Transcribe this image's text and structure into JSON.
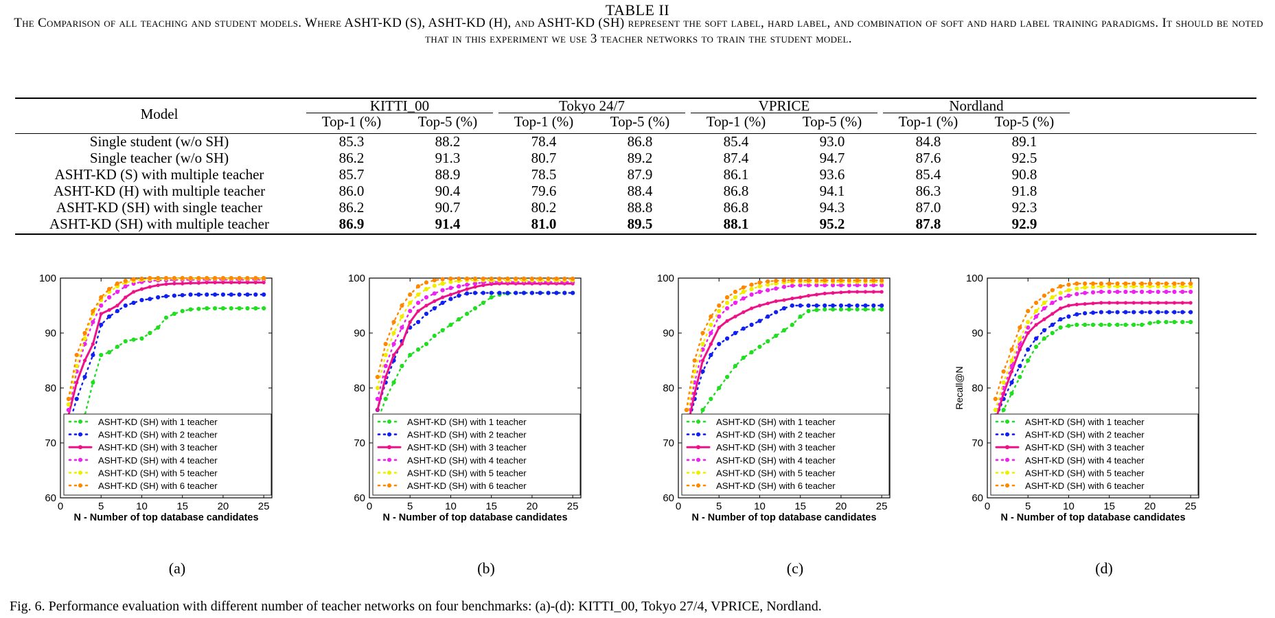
{
  "table": {
    "label": "TABLE II",
    "caption": "The Comparison of all teaching and student models. Where ASHT-KD (S), ASHT-KD (H), and ASHT-KD (SH) represent the soft label, hard label, and combination of soft and hard label training paradigms. It should be noted that in this experiment we use 3 teacher networks to train the student model.",
    "model_header": "Model",
    "datasets": [
      "KITTI_00",
      "Tokyo 24/7",
      "VPRICE",
      "Nordland"
    ],
    "subheaders": [
      "Top-1 (%)",
      "Top-5 (%)"
    ],
    "rows": [
      {
        "model": "Single student (w/o SH)",
        "values": [
          "85.3",
          "88.2",
          "78.4",
          "86.8",
          "85.4",
          "93.0",
          "84.8",
          "89.1"
        ],
        "bold": false
      },
      {
        "model": "Single teacher (w/o SH)",
        "values": [
          "86.2",
          "91.3",
          "80.7",
          "89.2",
          "87.4",
          "94.7",
          "87.6",
          "92.5"
        ],
        "bold": false
      },
      {
        "model": "ASHT-KD (S) with multiple teacher",
        "values": [
          "85.7",
          "88.9",
          "78.5",
          "87.9",
          "86.1",
          "93.6",
          "85.4",
          "90.8"
        ],
        "bold": false
      },
      {
        "model": "ASHT-KD (H) with multiple teacher",
        "values": [
          "86.0",
          "90.4",
          "79.6",
          "88.4",
          "86.8",
          "94.1",
          "86.3",
          "91.8"
        ],
        "bold": false
      },
      {
        "model": "ASHT-KD (SH) with single teacher",
        "values": [
          "86.2",
          "90.7",
          "80.2",
          "88.8",
          "86.8",
          "94.3",
          "87.0",
          "92.3"
        ],
        "bold": false
      },
      {
        "model": "ASHT-KD (SH) with multiple teacher",
        "values": [
          "86.9",
          "91.4",
          "81.0",
          "89.5",
          "88.1",
          "95.2",
          "87.8",
          "92.9"
        ],
        "bold": true
      }
    ]
  },
  "figure": {
    "caption": "Fig. 6.  Performance evaluation with different number of teacher networks on four benchmarks: (a)-(d): KITTI_00, Tokyo 27/4, VPRICE, Nordland.",
    "colors": [
      "#22dd22",
      "#1020ee",
      "#ee1188",
      "#ee22ee",
      "#f0ee00",
      "#ff8800"
    ],
    "series_names": [
      "ASHT-KD (SH) with 1 teacher",
      "ASHT-KD (SH) with 2 teacher",
      "ASHT-KD (SH) with 3 teacher",
      "ASHT-KD (SH) with 4 teacher",
      "ASHT-KD (SH) with 5 teacher",
      "ASHT-KD (SH) with 6 teacher"
    ]
  },
  "chart_data": [
    {
      "type": "line",
      "sublabel": "(a)",
      "xlabel": "N - Number of top database candidates",
      "ylabel": "",
      "xlim": [
        0,
        26
      ],
      "ylim": [
        60,
        100
      ],
      "xticks": [
        0,
        5,
        10,
        15,
        20,
        25
      ],
      "yticks": [
        60,
        70,
        80,
        90,
        100
      ],
      "legend": "bottom-right",
      "x": [
        1,
        2,
        3,
        4,
        5,
        6,
        7,
        8,
        9,
        10,
        11,
        12,
        13,
        14,
        15,
        16,
        17,
        18,
        19,
        20,
        21,
        22,
        23,
        24,
        25
      ],
      "series": [
        {
          "name": "ASHT-KD (SH) with 1 teacher",
          "values": [
            68,
            72,
            75,
            81,
            86,
            86.5,
            87.5,
            88.5,
            88.8,
            89,
            90,
            91,
            92.8,
            93.5,
            94,
            94.3,
            94.4,
            94.5,
            94.5,
            94.5,
            94.5,
            94.5,
            94.5,
            94.5,
            94.5
          ]
        },
        {
          "name": "ASHT-KD (SH) with 2 teacher",
          "values": [
            73,
            78,
            82,
            86,
            91.5,
            93,
            94,
            95,
            95.5,
            96,
            96.2,
            96.5,
            96.7,
            96.8,
            96.9,
            97,
            97,
            97,
            97,
            97,
            97,
            97,
            97,
            97,
            97
          ]
        },
        {
          "name": "ASHT-KD (SH) with 3 teacher",
          "values": [
            75,
            81,
            85,
            88,
            93.5,
            94.2,
            95,
            96.5,
            97.5,
            98,
            98.4,
            98.7,
            98.9,
            99,
            99,
            99.1,
            99.1,
            99.2,
            99.2,
            99.2,
            99.2,
            99.2,
            99.2,
            99.2,
            99.2
          ]
        },
        {
          "name": "ASHT-KD (SH) with 4 teacher",
          "values": [
            76,
            83,
            88,
            92,
            95,
            96.5,
            97.5,
            98.5,
            99,
            99.3,
            99.5,
            99.6,
            99.6,
            99.7,
            99.7,
            99.7,
            99.7,
            99.7,
            99.7,
            99.7,
            99.7,
            99.7,
            99.7,
            99.7,
            99.7
          ]
        },
        {
          "name": "ASHT-KD (SH) with 5 teacher",
          "values": [
            77,
            84,
            89,
            93.5,
            96,
            97.5,
            98.5,
            99.2,
            99.5,
            99.7,
            99.8,
            99.8,
            99.9,
            99.9,
            99.9,
            99.9,
            99.9,
            99.9,
            99.9,
            99.9,
            99.9,
            99.9,
            99.9,
            99.9,
            99.9
          ]
        },
        {
          "name": "ASHT-KD (SH) with 6 teacher",
          "values": [
            78,
            86,
            90,
            94,
            96.5,
            98,
            99,
            99.5,
            99.8,
            99.9,
            100,
            100,
            100,
            100,
            100,
            100,
            100,
            100,
            100,
            100,
            100,
            100,
            100,
            100,
            100
          ]
        }
      ]
    },
    {
      "type": "line",
      "sublabel": "(b)",
      "xlabel": "N - Number of top database candidates",
      "ylabel": "",
      "xlim": [
        0,
        26
      ],
      "ylim": [
        60,
        100
      ],
      "xticks": [
        0,
        5,
        10,
        15,
        20,
        25
      ],
      "yticks": [
        60,
        70,
        80,
        90,
        100
      ],
      "legend": "bottom-right",
      "x": [
        1,
        2,
        3,
        4,
        5,
        6,
        7,
        8,
        9,
        10,
        11,
        12,
        13,
        14,
        15,
        16,
        17,
        18,
        19,
        20,
        21,
        22,
        23,
        24,
        25
      ],
      "series": [
        {
          "name": "ASHT-KD (SH) with 1 teacher",
          "values": [
            74,
            78,
            81,
            84,
            86,
            87,
            88,
            89.5,
            90.5,
            91.5,
            92.5,
            93.5,
            94.5,
            95.5,
            96.5,
            97,
            97.2,
            97.3,
            97.3,
            97.3,
            97.3,
            97.3,
            97.3,
            97.3,
            97.3
          ]
        },
        {
          "name": "ASHT-KD (SH) with 2 teacher",
          "values": [
            76,
            81,
            85,
            88.5,
            91,
            92,
            93.5,
            94.5,
            95.5,
            96.2,
            96.8,
            97.2,
            97.3,
            97.3,
            97.3,
            97.3,
            97.3,
            97.3,
            97.3,
            97.3,
            97.3,
            97.3,
            97.3,
            97.3,
            97.3
          ]
        },
        {
          "name": "ASHT-KD (SH) with 3 teacher",
          "values": [
            76,
            82,
            86,
            88,
            92,
            94,
            95,
            95.8,
            96.5,
            97,
            97.5,
            98,
            98.4,
            98.7,
            98.9,
            99,
            99,
            99,
            99,
            99,
            99,
            99,
            99,
            99,
            99
          ]
        },
        {
          "name": "ASHT-KD (SH) with 4 teacher",
          "values": [
            78,
            84,
            88,
            91,
            94,
            95.5,
            96.5,
            97.2,
            97.8,
            98.2,
            98.5,
            98.8,
            99,
            99.2,
            99.3,
            99.3,
            99.3,
            99.3,
            99.3,
            99.3,
            99.3,
            99.3,
            99.3,
            99.3,
            99.3
          ]
        },
        {
          "name": "ASHT-KD (SH) with 5 teacher",
          "values": [
            80,
            86,
            90,
            93,
            95.5,
            97,
            98,
            98.6,
            99,
            99.3,
            99.5,
            99.6,
            99.6,
            99.6,
            99.6,
            99.6,
            99.6,
            99.6,
            99.6,
            99.6,
            99.6,
            99.6,
            99.6,
            99.6,
            99.6
          ]
        },
        {
          "name": "ASHT-KD (SH) with 6 teacher",
          "values": [
            82,
            88,
            92,
            95,
            97,
            98.5,
            99.2,
            99.6,
            99.8,
            99.9,
            99.9,
            99.9,
            99.9,
            99.9,
            99.9,
            99.9,
            99.9,
            99.9,
            99.9,
            99.9,
            99.9,
            99.9,
            99.9,
            99.9,
            99.9
          ]
        }
      ]
    },
    {
      "type": "line",
      "sublabel": "(c)",
      "xlabel": "N - Number of top database candidates",
      "ylabel": "",
      "xlim": [
        0,
        26
      ],
      "ylim": [
        60,
        100
      ],
      "xticks": [
        0,
        5,
        10,
        15,
        20,
        25
      ],
      "yticks": [
        60,
        70,
        80,
        90,
        100
      ],
      "legend": "bottom-right",
      "x": [
        1,
        2,
        3,
        4,
        5,
        6,
        7,
        8,
        9,
        10,
        11,
        12,
        13,
        14,
        15,
        16,
        17,
        18,
        19,
        20,
        21,
        22,
        23,
        24,
        25
      ],
      "series": [
        {
          "name": "ASHT-KD (SH) with 1 teacher",
          "values": [
            68,
            72,
            76,
            78,
            80,
            82,
            84,
            85.5,
            86.5,
            87.5,
            88.5,
            89.5,
            90.5,
            91.5,
            93,
            94,
            94.2,
            94.3,
            94.3,
            94.3,
            94.3,
            94.3,
            94.3,
            94.3,
            94.3
          ]
        },
        {
          "name": "ASHT-KD (SH) with 2 teacher",
          "values": [
            71,
            78,
            83,
            86,
            88,
            89,
            90,
            90.8,
            91.5,
            92.2,
            93,
            93.8,
            94.5,
            95,
            95,
            95,
            95,
            95,
            95,
            95,
            95,
            95,
            95,
            95,
            95
          ]
        },
        {
          "name": "ASHT-KD (SH) with 3 teacher",
          "values": [
            72,
            79,
            85,
            88,
            91,
            92.2,
            93,
            93.8,
            94.5,
            95,
            95.4,
            95.8,
            96,
            96.3,
            96.5,
            96.8,
            97,
            97.2,
            97.3,
            97.4,
            97.5,
            97.5,
            97.5,
            97.5,
            97.5
          ]
        },
        {
          "name": "ASHT-KD (SH) with 4 teacher",
          "values": [
            73,
            81,
            87,
            90,
            93,
            94.5,
            95.5,
            96.3,
            97,
            97.5,
            97.8,
            98.1,
            98.4,
            98.6,
            98.7,
            98.7,
            98.7,
            98.7,
            98.7,
            98.7,
            98.7,
            98.7,
            98.7,
            98.7,
            98.7
          ]
        },
        {
          "name": "ASHT-KD (SH) with 5 teacher",
          "values": [
            74,
            83,
            88,
            91.5,
            94,
            95.5,
            96.5,
            97.5,
            98,
            98.5,
            98.8,
            99,
            99.2,
            99.3,
            99.3,
            99.3,
            99.3,
            99.3,
            99.3,
            99.3,
            99.3,
            99.3,
            99.3,
            99.3,
            99.3
          ]
        },
        {
          "name": "ASHT-KD (SH) with 6 teacher",
          "values": [
            76,
            85,
            90,
            93,
            95,
            96.5,
            97.5,
            98.3,
            98.8,
            99.2,
            99.4,
            99.5,
            99.6,
            99.6,
            99.6,
            99.6,
            99.6,
            99.6,
            99.6,
            99.6,
            99.6,
            99.6,
            99.6,
            99.6,
            99.6
          ]
        }
      ]
    },
    {
      "type": "line",
      "sublabel": "(d)",
      "xlabel": "N - Number of top database candidates",
      "ylabel": "Recall@N",
      "xlim": [
        0,
        26
      ],
      "ylim": [
        60,
        100
      ],
      "xticks": [
        0,
        5,
        10,
        15,
        20,
        25
      ],
      "yticks": [
        60,
        70,
        80,
        90,
        100
      ],
      "legend": "bottom-right",
      "x": [
        1,
        2,
        3,
        4,
        5,
        6,
        7,
        8,
        9,
        10,
        11,
        12,
        13,
        14,
        15,
        16,
        17,
        18,
        19,
        20,
        21,
        22,
        23,
        24,
        25
      ],
      "series": [
        {
          "name": "ASHT-KD (SH) with 1 teacher",
          "values": [
            73,
            76,
            79,
            82,
            85,
            87.5,
            89,
            90,
            91,
            91.3,
            91.5,
            91.5,
            91.5,
            91.5,
            91.5,
            91.5,
            91.5,
            91.5,
            91.5,
            91.8,
            92,
            92,
            92,
            92,
            92
          ]
        },
        {
          "name": "ASHT-KD (SH) with 2 teacher",
          "values": [
            74,
            78,
            81,
            84,
            87,
            89,
            90.5,
            91.5,
            92.5,
            93,
            93.4,
            93.6,
            93.7,
            93.8,
            93.8,
            93.8,
            93.8,
            93.8,
            93.8,
            93.8,
            93.8,
            93.8,
            93.8,
            93.8,
            93.8
          ]
        },
        {
          "name": "ASHT-KD (SH) with 3 teacher",
          "values": [
            74,
            79,
            83,
            87,
            90,
            91.5,
            92.5,
            93.5,
            94.5,
            95,
            95.2,
            95.3,
            95.4,
            95.5,
            95.5,
            95.5,
            95.5,
            95.5,
            95.5,
            95.5,
            95.5,
            95.5,
            95.5,
            95.5,
            95.5
          ]
        },
        {
          "name": "ASHT-KD (SH) with 4 teacher",
          "values": [
            75,
            80,
            84,
            88,
            91,
            93,
            94.5,
            95.5,
            96.3,
            96.8,
            97.1,
            97.3,
            97.4,
            97.5,
            97.5,
            97.5,
            97.5,
            97.5,
            97.5,
            97.5,
            97.5,
            97.5,
            97.5,
            97.5,
            97.5
          ]
        },
        {
          "name": "ASHT-KD (SH) with 5 teacher",
          "values": [
            76,
            81,
            85,
            89,
            92,
            94,
            95.5,
            96.5,
            97.3,
            97.8,
            98.1,
            98.3,
            98.4,
            98.5,
            98.5,
            98.5,
            98.5,
            98.5,
            98.5,
            98.5,
            98.5,
            98.5,
            98.5,
            98.5,
            98.5
          ]
        },
        {
          "name": "ASHT-KD (SH) with 6 teacher",
          "values": [
            78,
            83,
            87,
            91,
            94,
            95.5,
            96.8,
            97.8,
            98.5,
            98.8,
            99,
            99,
            99,
            99,
            99,
            99,
            99,
            99,
            99,
            99,
            99,
            99,
            99,
            99,
            99
          ]
        }
      ]
    }
  ]
}
